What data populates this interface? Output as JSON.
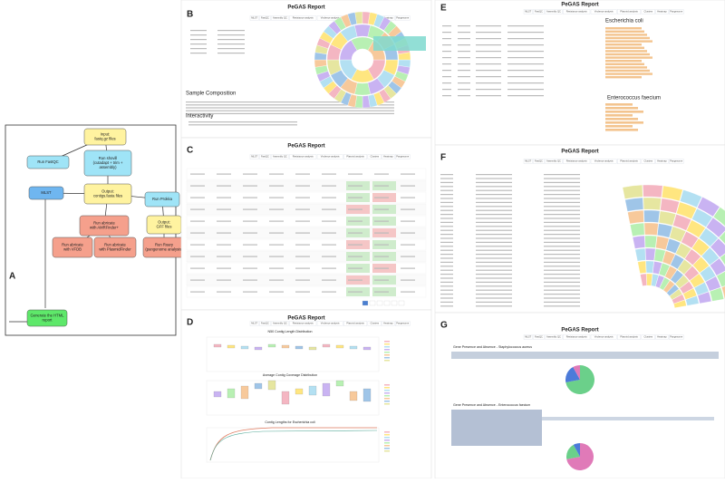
{
  "flowchart": {
    "letter": "A",
    "nodes": [
      {
        "lines": [
          "Input:",
          "fastq.gz files"
        ],
        "color": "#fff3a0"
      },
      {
        "lines": [
          "Run FastQC"
        ],
        "color": "#9fe4f7"
      },
      {
        "lines": [
          "Run shovill",
          "(cutadapt + trim +",
          "assembly)"
        ],
        "color": "#9fe4f7"
      },
      {
        "lines": [
          "MLST"
        ],
        "color": "#6fb6f0"
      },
      {
        "lines": [
          "Output:",
          "contigs.fasta files"
        ],
        "color": "#fff3a0"
      },
      {
        "lines": [
          "Run Prokka"
        ],
        "color": "#9fe4f7"
      },
      {
        "lines": [
          "Run abricate",
          "with AMRFinder+"
        ],
        "color": "#f5a08c"
      },
      {
        "lines": [
          "Run abricate",
          "with VFDB"
        ],
        "color": "#f5a08c"
      },
      {
        "lines": [
          "Run abricate",
          "with PlasmidFinder"
        ],
        "color": "#f5a08c"
      },
      {
        "lines": [
          "Output:",
          "GFF files"
        ],
        "color": "#fff3a0"
      },
      {
        "lines": [
          "Run Roary",
          "(pangenome analysis)"
        ],
        "color": "#f5a08c"
      },
      {
        "lines": [
          "Generate the HTML",
          "report"
        ],
        "color": "#5ee86a"
      }
    ]
  },
  "report": {
    "title": "PeGAS Report",
    "tabs": [
      "MLST",
      "FastQC",
      "Assembly QC",
      "Resistance analysis",
      "Virulence analysis",
      "Plasmid analysis",
      "Clusters",
      "Heatmap",
      "Pangenome"
    ]
  },
  "panels": [
    {
      "letter": "B",
      "headings": [
        "Sample Composition",
        "Interactivity"
      ]
    },
    {
      "letter": "C",
      "headings": []
    },
    {
      "letter": "D",
      "headings": [
        "N50 Contig Length Distribution",
        "Average Contig Coverage Distribution",
        "Contig Lengths for Escherichia coli"
      ]
    },
    {
      "letter": "E",
      "headings": [
        "Escherichia coli",
        "Enterococcus faecium"
      ]
    },
    {
      "letter": "F",
      "headings": []
    },
    {
      "letter": "G",
      "headings": [
        "Gene Presence and Absence - Staphylococcus aureus",
        "Gene Presence and Absence - Enterococcus faecium"
      ]
    }
  ]
}
